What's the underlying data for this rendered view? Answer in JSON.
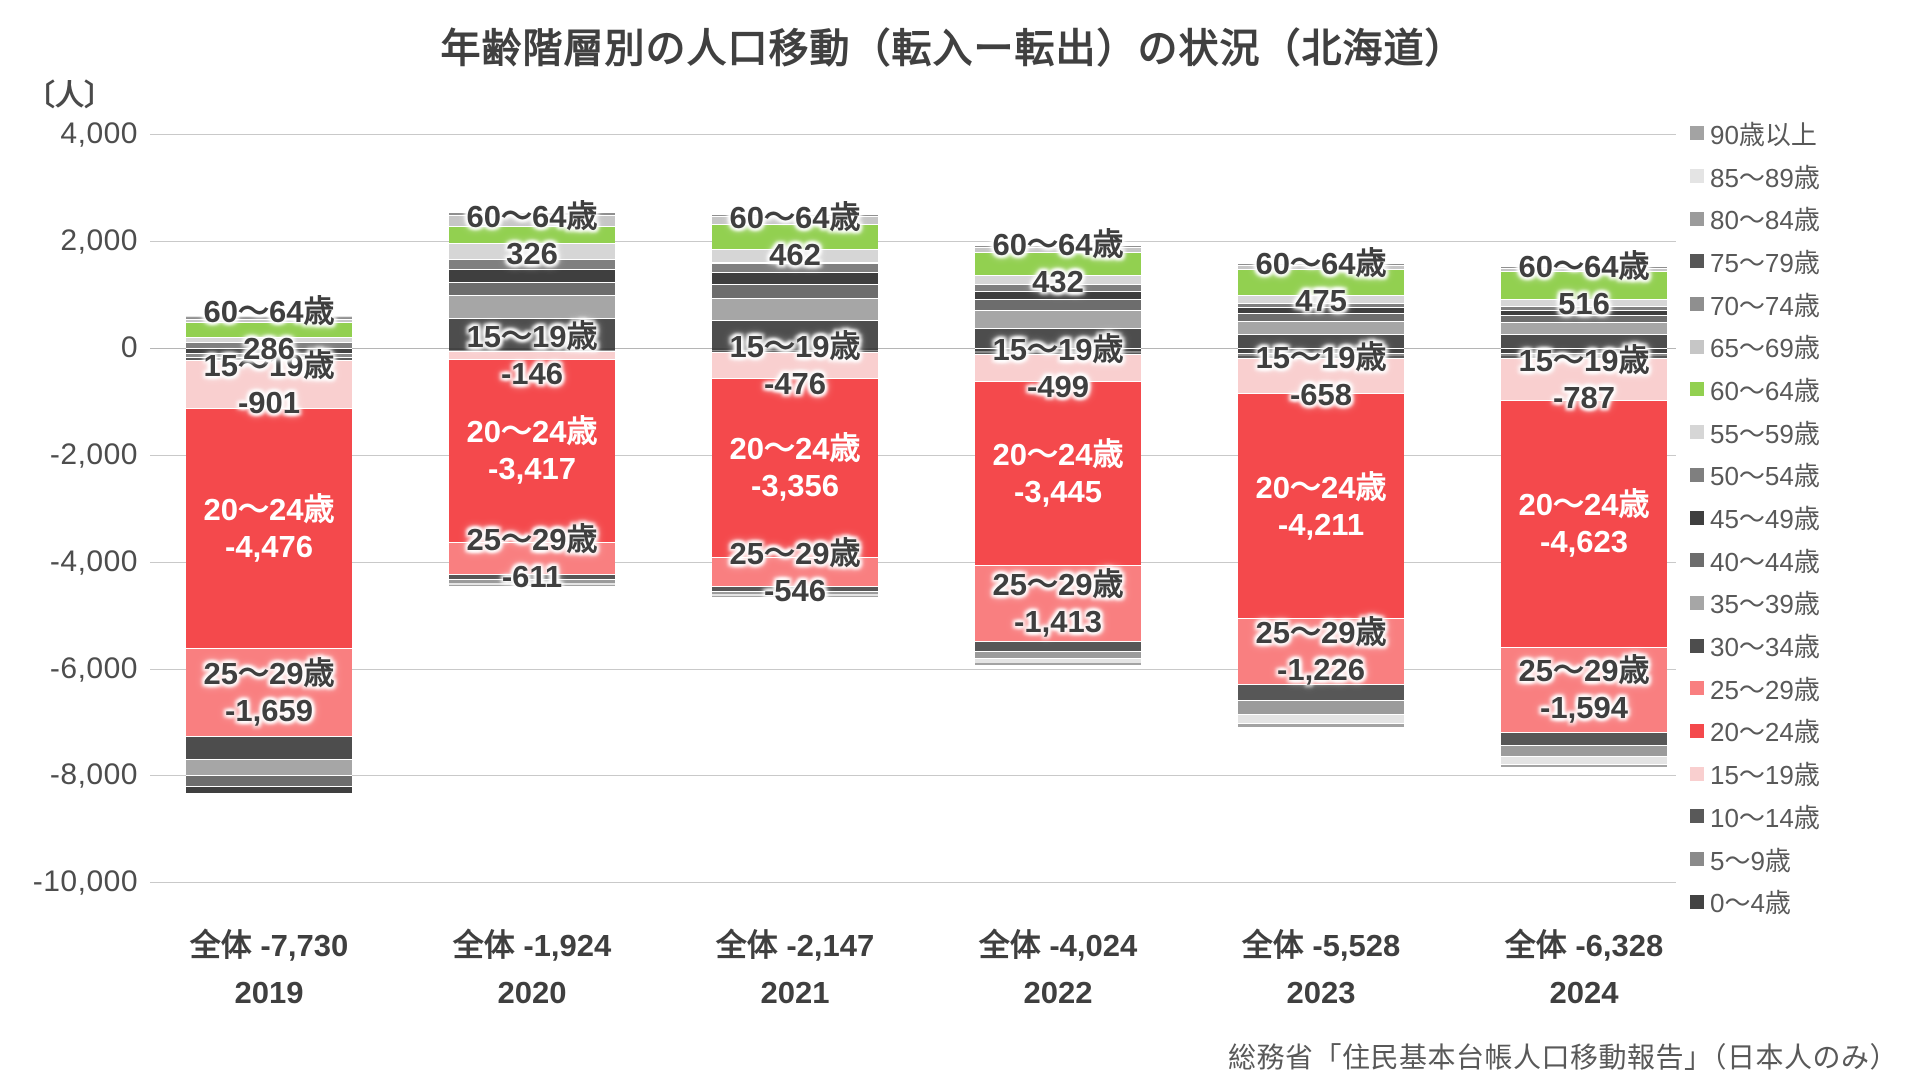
{
  "title": "年齢階層別の人口移動（転入ー転出）の状況（北海道）",
  "y_axis": {
    "unit_label": "〔人〕"
  },
  "x_axis": {
    "total_prefix": "全体"
  },
  "source": "総務省「住民基本台帳人口移動報告」（日本人のみ）",
  "chart_data": {
    "type": "bar",
    "stacked": true,
    "grid": true,
    "legend_position": "right",
    "ylim": [
      -10000,
      4000
    ],
    "y_tick_step": 2000,
    "categories": [
      "2019",
      "2020",
      "2021",
      "2022",
      "2023",
      "2024"
    ],
    "totals": [
      -7730,
      -1924,
      -2147,
      -4024,
      -5528,
      -6328
    ],
    "series": [
      {
        "name": "0～4歳",
        "color": "#434343",
        "labeled": false,
        "values": [
          -90,
          -30,
          -40,
          -60,
          -90,
          -90
        ]
      },
      {
        "name": "5～9歳",
        "color": "#8a8a8a",
        "labeled": false,
        "values": [
          -80,
          -20,
          -25,
          -40,
          -60,
          -55
        ]
      },
      {
        "name": "10～14歳",
        "color": "#595959",
        "labeled": false,
        "values": [
          -60,
          -10,
          -15,
          -20,
          -40,
          -35
        ]
      },
      {
        "name": "15～19歳",
        "color": "#f9cfcf",
        "labeled": true,
        "values": [
          -901,
          -146,
          -476,
          -499,
          -658,
          -787
        ]
      },
      {
        "name": "20～24歳",
        "color": "#f4494c",
        "labeled": true,
        "label_on_dark": true,
        "values": [
          -4476,
          -3417,
          -3356,
          -3445,
          -4211,
          -4623
        ]
      },
      {
        "name": "25～29歳",
        "color": "#f97f80",
        "labeled": true,
        "values": [
          -1659,
          -611,
          -546,
          -1413,
          -1226,
          -1594
        ]
      },
      {
        "name": "30～34歳",
        "color": "#4d4d4d",
        "labeled": false,
        "values": [
          -420,
          560,
          520,
          380,
          270,
          260
        ]
      },
      {
        "name": "35～39歳",
        "color": "#a6a6a6",
        "labeled": false,
        "values": [
          -300,
          430,
          420,
          330,
          240,
          230
        ]
      },
      {
        "name": "40～44歳",
        "color": "#6d6d6d",
        "labeled": false,
        "values": [
          -220,
          250,
          260,
          200,
          140,
          130
        ]
      },
      {
        "name": "45～49歳",
        "color": "#3f3f3f",
        "labeled": false,
        "values": [
          -120,
          230,
          220,
          160,
          110,
          100
        ]
      },
      {
        "name": "50～54歳",
        "color": "#7f7f7f",
        "labeled": false,
        "values": [
          120,
          190,
          180,
          120,
          80,
          70
        ]
      },
      {
        "name": "55～59歳",
        "color": "#d6d6d6",
        "labeled": false,
        "values": [
          80,
          300,
          260,
          180,
          160,
          130
        ]
      },
      {
        "name": "60～64歳",
        "color": "#92d050",
        "labeled": true,
        "values": [
          286,
          326,
          462,
          432,
          475,
          516
        ]
      },
      {
        "name": "65～69歳",
        "color": "#c6c6c6",
        "labeled": false,
        "values": [
          60,
          200,
          140,
          80,
          80,
          70
        ]
      },
      {
        "name": "70～74歳",
        "color": "#8f8f8f",
        "labeled": false,
        "values": [
          25,
          40,
          30,
          20,
          10,
          10
        ]
      },
      {
        "name": "75～79歳",
        "color": "#575757",
        "labeled": false,
        "values": [
          5,
          -90,
          -90,
          -200,
          -310,
          -250
        ]
      },
      {
        "name": "80～84歳",
        "color": "#9b9b9b",
        "labeled": false,
        "values": [
          10,
          -70,
          -55,
          -130,
          -260,
          -210
        ]
      },
      {
        "name": "85～89歳",
        "color": "#e4e4e4",
        "labeled": false,
        "values": [
          10,
          -40,
          -30,
          -80,
          -165,
          -140
        ]
      },
      {
        "name": "90歳以上",
        "color": "#a3a3a3",
        "labeled": false,
        "values": [
          0,
          -16,
          -6,
          -39,
          -73,
          -60
        ]
      }
    ]
  }
}
